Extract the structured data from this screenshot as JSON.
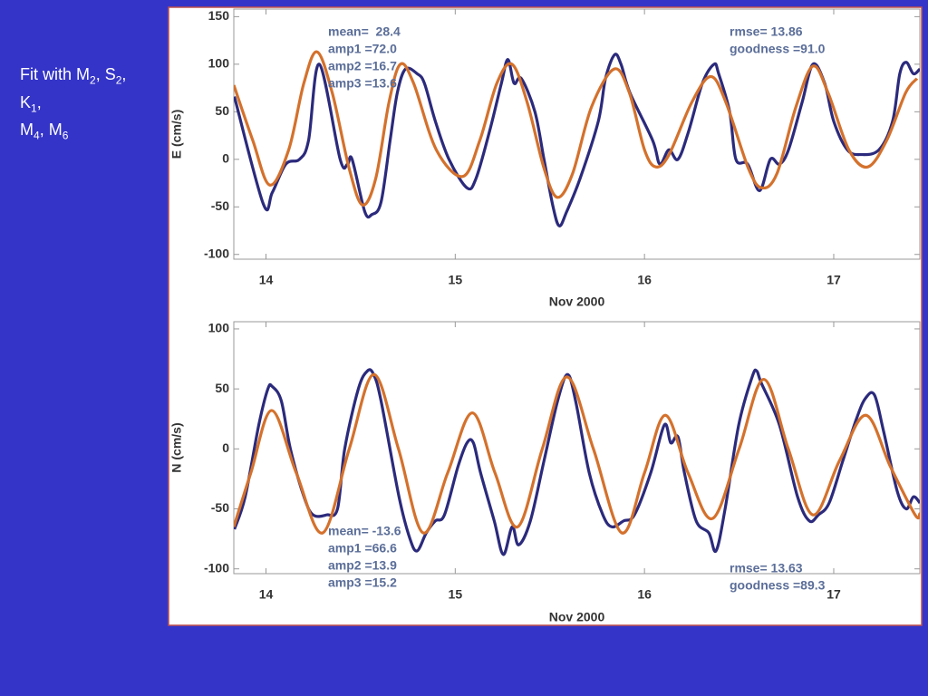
{
  "caption": {
    "lines": [
      [
        {
          "text": "Fit with M"
        },
        {
          "sub": "2"
        },
        {
          "text": ", S"
        },
        {
          "sub": "2"
        },
        {
          "text": ","
        }
      ],
      [
        {
          "text": "K"
        },
        {
          "sub": "1"
        },
        {
          "text": ","
        }
      ],
      [
        {
          "text": "M"
        },
        {
          "sub": "4"
        },
        {
          "text": ", M"
        },
        {
          "sub": "6"
        }
      ]
    ]
  },
  "chart_data": [
    {
      "type": "line",
      "xlabel": "Nov 2000",
      "ylabel": "E (cm/s)",
      "xlim": [
        13.83,
        17.455
      ],
      "ylim": [
        -105,
        158
      ],
      "xticks": [
        14,
        15,
        16,
        17
      ],
      "yticks": [
        150,
        100,
        50,
        0,
        -50,
        -100
      ],
      "annotations": [
        "mean=  28.4",
        "amp1 =72.0",
        "amp2 =16.7",
        "amp3 =13.6",
        "rmse= 13.86",
        "goodness =91.0"
      ],
      "series": [
        {
          "color": "#2b2a7c",
          "x": [
            13.833,
            13.986,
            14.033,
            14.105,
            14.177,
            14.225,
            14.282,
            14.392,
            14.431,
            14.455,
            14.522,
            14.56,
            14.608,
            14.656,
            14.694,
            14.737,
            14.799,
            14.837,
            14.895,
            14.967,
            15.062,
            15.11,
            15.182,
            15.244,
            15.278,
            15.311,
            15.349,
            15.421,
            15.469,
            15.517,
            15.55,
            15.589,
            15.66,
            15.756,
            15.794,
            15.842,
            15.876,
            15.923,
            16.043,
            16.081,
            16.129,
            16.177,
            16.234,
            16.306,
            16.368,
            16.392,
            16.45,
            16.483,
            16.545,
            16.608,
            16.665,
            16.713,
            16.761,
            16.833,
            16.89,
            16.952,
            17.0,
            17.072,
            17.144,
            17.239,
            17.311,
            17.349,
            17.383,
            17.421,
            17.455
          ],
          "values": [
            66,
            -47,
            -35,
            -5,
            0,
            20,
            100,
            0,
            -5,
            0,
            -55,
            -58,
            -45,
            20,
            70,
            95,
            90,
            80,
            40,
            0,
            -30,
            -20,
            30,
            80,
            105,
            80,
            85,
            50,
            0,
            -50,
            -70,
            -55,
            -20,
            40,
            85,
            110,
            100,
            70,
            20,
            -5,
            10,
            0,
            30,
            80,
            100,
            90,
            50,
            0,
            -5,
            -33,
            0,
            -5,
            10,
            60,
            100,
            80,
            40,
            10,
            5,
            10,
            40,
            90,
            102,
            90,
            95
          ]
        },
        {
          "color": "#d4712c",
          "x": [
            13.83,
            13.93,
            14.02,
            14.12,
            14.2,
            14.27,
            14.35,
            14.44,
            14.51,
            14.58,
            14.65,
            14.71,
            14.78,
            14.9,
            15.04,
            15.13,
            15.22,
            15.3,
            15.38,
            15.47,
            15.54,
            15.62,
            15.72,
            15.84,
            15.92,
            16.0,
            16.06,
            16.13,
            16.25,
            16.35,
            16.43,
            16.55,
            16.62,
            16.7,
            16.8,
            16.89,
            16.97,
            17.08,
            17.18,
            17.28,
            17.38,
            17.44
          ],
          "values": [
            78,
            20,
            -27,
            10,
            80,
            113,
            70,
            -10,
            -48,
            -20,
            60,
            100,
            80,
            10,
            -18,
            20,
            80,
            100,
            60,
            -10,
            -40,
            -15,
            55,
            95,
            70,
            10,
            -8,
            5,
            60,
            87,
            60,
            -10,
            -30,
            -15,
            55,
            98,
            70,
            10,
            -8,
            20,
            70,
            85
          ]
        }
      ]
    },
    {
      "type": "line",
      "xlabel": "Nov 2000",
      "ylabel": "N (cm/s)",
      "xlim": [
        13.83,
        17.455
      ],
      "ylim": [
        -104,
        106
      ],
      "xticks": [
        14,
        15,
        16,
        17
      ],
      "yticks": [
        100,
        50,
        0,
        -50,
        -100
      ],
      "annotations": [
        "mean= -13.6",
        "amp1 =66.6",
        "amp2 =13.9",
        "amp3 =15.2",
        "rmse= 13.63",
        "goodness =89.3"
      ],
      "series": [
        {
          "color": "#2b2a7c",
          "x": [
            13.833,
            13.89,
            13.962,
            14.01,
            14.033,
            14.081,
            14.129,
            14.201,
            14.249,
            14.321,
            14.378,
            14.416,
            14.488,
            14.536,
            14.569,
            14.608,
            14.703,
            14.761,
            14.799,
            14.847,
            14.895,
            14.943,
            15.014,
            15.062,
            15.096,
            15.134,
            15.206,
            15.254,
            15.301,
            15.335,
            15.397,
            15.469,
            15.541,
            15.593,
            15.636,
            15.708,
            15.78,
            15.828,
            15.89,
            15.947,
            16.033,
            16.105,
            16.139,
            16.177,
            16.211,
            16.273,
            16.34,
            16.378,
            16.426,
            16.498,
            16.569,
            16.593,
            16.617,
            16.713,
            16.809,
            16.871,
            16.919,
            16.976,
            17.048,
            17.12,
            17.167,
            17.215,
            17.263,
            17.335,
            17.383,
            17.421,
            17.455
          ],
          "values": [
            -67,
            -40,
            20,
            50,
            52,
            40,
            0,
            -40,
            -55,
            -55,
            -50,
            0,
            50,
            65,
            62,
            40,
            -40,
            -75,
            -85,
            -70,
            -60,
            -55,
            -15,
            5,
            5,
            -20,
            -60,
            -88,
            -65,
            -80,
            -60,
            -10,
            40,
            62,
            40,
            -20,
            -55,
            -65,
            -60,
            -55,
            -20,
            20,
            5,
            10,
            -20,
            -60,
            -70,
            -85,
            -50,
            20,
            60,
            65,
            55,
            20,
            -40,
            -60,
            -55,
            -45,
            -10,
            25,
            42,
            45,
            15,
            -35,
            -50,
            -40,
            -45
          ]
        },
        {
          "color": "#d4712c",
          "x": [
            13.83,
            13.92,
            14.03,
            14.16,
            14.3,
            14.44,
            14.57,
            14.7,
            14.83,
            14.96,
            15.09,
            15.21,
            15.33,
            15.46,
            15.59,
            15.73,
            15.88,
            16.0,
            16.11,
            16.23,
            16.36,
            16.5,
            16.63,
            16.76,
            16.89,
            17.03,
            17.17,
            17.3,
            17.43,
            17.455
          ],
          "values": [
            -65,
            -20,
            32,
            -20,
            -70,
            0,
            62,
            0,
            -70,
            -20,
            30,
            -20,
            -65,
            0,
            60,
            0,
            -70,
            -20,
            28,
            -20,
            -58,
            0,
            58,
            0,
            -55,
            -10,
            28,
            -15,
            -55,
            -54
          ]
        }
      ]
    }
  ]
}
